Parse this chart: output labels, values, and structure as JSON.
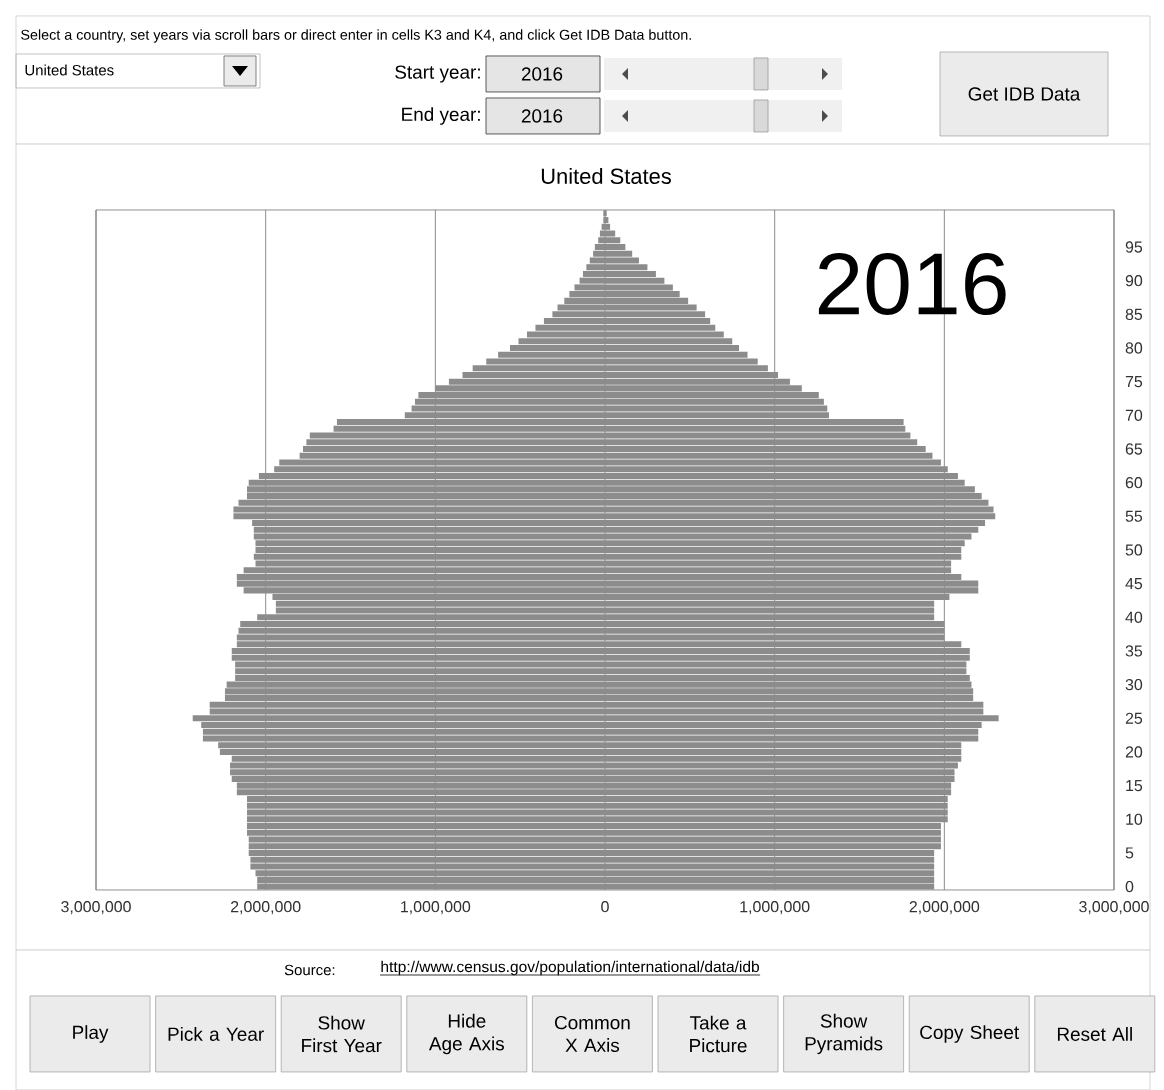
{
  "chart_data": {
    "type": "bar",
    "orientation": "horizontal",
    "title": "United States",
    "categories": [
      null,
      null,
      null,
      null,
      null,
      "95",
      null,
      null,
      null,
      null,
      "90",
      null,
      null,
      null,
      null,
      "85",
      null,
      null,
      null,
      null,
      "80",
      null,
      null,
      null,
      null,
      "75",
      null,
      null,
      null,
      null,
      "70",
      null,
      null,
      null,
      null,
      "65",
      null,
      null,
      null,
      null,
      "60",
      null,
      null,
      null,
      null,
      "55",
      null,
      null,
      null,
      null,
      "50",
      null,
      null,
      null,
      null,
      "45",
      null,
      null,
      null,
      null,
      "40",
      null,
      null,
      null,
      null,
      "35",
      null,
      null,
      null,
      null,
      "30",
      null,
      null,
      null,
      null,
      "25",
      null,
      null,
      null,
      null,
      "20",
      null,
      null,
      null,
      null,
      "15",
      null,
      null,
      null,
      null,
      "10",
      null,
      null,
      null,
      null,
      "5",
      null,
      null,
      null,
      null,
      "0"
    ],
    "series": [
      {
        "color": "#8c8c8c",
        "values": [
          -10000,
          -10000,
          -20000,
          -30000,
          -40000,
          -60000,
          -70000,
          -90000,
          -110000,
          -130000,
          -150000,
          -180000,
          -210000,
          -240000,
          -280000,
          -310000,
          -360000,
          -410000,
          -460000,
          -510000,
          -560000,
          -630000,
          -700000,
          -780000,
          -840000,
          -920000,
          -1000000,
          -1100000,
          -1120000,
          -1140000,
          -1180000,
          -1580000,
          -1600000,
          -1740000,
          -1760000,
          -1780000,
          -1800000,
          -1920000,
          -1950000,
          -2040000,
          -2100000,
          -2110000,
          -2110000,
          -2160000,
          -2190000,
          -2190000,
          -2080000,
          -2070000,
          -2070000,
          -2060000,
          -2060000,
          -2070000,
          -2060000,
          -2130000,
          -2170000,
          -2170000,
          -2130000,
          -1960000,
          -1940000,
          -1940000,
          -2050000,
          -2150000,
          -2160000,
          -2170000,
          -2170000,
          -2200000,
          -2200000,
          -2180000,
          -2180000,
          -2180000,
          -2230000,
          -2240000,
          -2240000,
          -2330000,
          -2330000,
          -2430000,
          -2380000,
          -2370000,
          -2370000,
          -2280000,
          -2270000,
          -2200000,
          -2210000,
          -2210000,
          -2200000,
          -2170000,
          -2170000,
          -2110000,
          -2110000,
          -2110000,
          -2110000,
          -2110000,
          -2110000,
          -2100000,
          -2100000,
          -2100000,
          -2090000,
          -2090000,
          -2060000,
          -2050000,
          -2050000
        ]
      },
      {
        "color": "#8c8c8c",
        "values": [
          10000,
          20000,
          30000,
          60000,
          90000,
          120000,
          160000,
          200000,
          250000,
          300000,
          350000,
          400000,
          440000,
          490000,
          540000,
          590000,
          620000,
          650000,
          700000,
          750000,
          790000,
          840000,
          900000,
          960000,
          1020000,
          1090000,
          1160000,
          1260000,
          1290000,
          1310000,
          1320000,
          1760000,
          1770000,
          1800000,
          1840000,
          1890000,
          1930000,
          1980000,
          2020000,
          2080000,
          2120000,
          2180000,
          2220000,
          2260000,
          2290000,
          2300000,
          2240000,
          2200000,
          2160000,
          2120000,
          2100000,
          2100000,
          2040000,
          2040000,
          2100000,
          2200000,
          2200000,
          2030000,
          1940000,
          1940000,
          1940000,
          2000000,
          2000000,
          2000000,
          2100000,
          2150000,
          2150000,
          2130000,
          2130000,
          2150000,
          2160000,
          2170000,
          2170000,
          2230000,
          2230000,
          2320000,
          2220000,
          2200000,
          2200000,
          2100000,
          2100000,
          2100000,
          2080000,
          2060000,
          2060000,
          2040000,
          2040000,
          2020000,
          2020000,
          2020000,
          2020000,
          1980000,
          1980000,
          1980000,
          1980000,
          1940000,
          1940000,
          1940000,
          1940000,
          1940000,
          1940000
        ]
      }
    ],
    "xlim": [
      -3000000,
      3000000
    ],
    "xticks": [
      {
        "value": -3000000,
        "label": "3,000,000"
      },
      {
        "value": -2000000,
        "label": "2,000,000"
      },
      {
        "value": -1000000,
        "label": "1,000,000"
      },
      0,
      {
        "value": 1000000,
        "label": "1,000,000"
      },
      {
        "value": 2000000,
        "label": "2,000,000"
      },
      {
        "value": 3000000,
        "label": "3,000,000"
      }
    ],
    "grid": "x",
    "stacked": true,
    "annotations": [
      "Select a country, set years via scroll bars or direct enter in cells K3 and K4, and click Get IDB Data button.",
      "United States",
      "Start year:",
      "2016",
      "End year:",
      "2016",
      "Get IDB Data",
      "2016",
      "Source:",
      "http://www.census.gov/population/international/data/idb",
      "Play",
      "Pick a Year",
      "Show First Year",
      "Hide Age Axis",
      "Common X Axis",
      "Take a Picture",
      "Show Pyramids",
      "Copy Sheet",
      "Reset All"
    ]
  }
}
